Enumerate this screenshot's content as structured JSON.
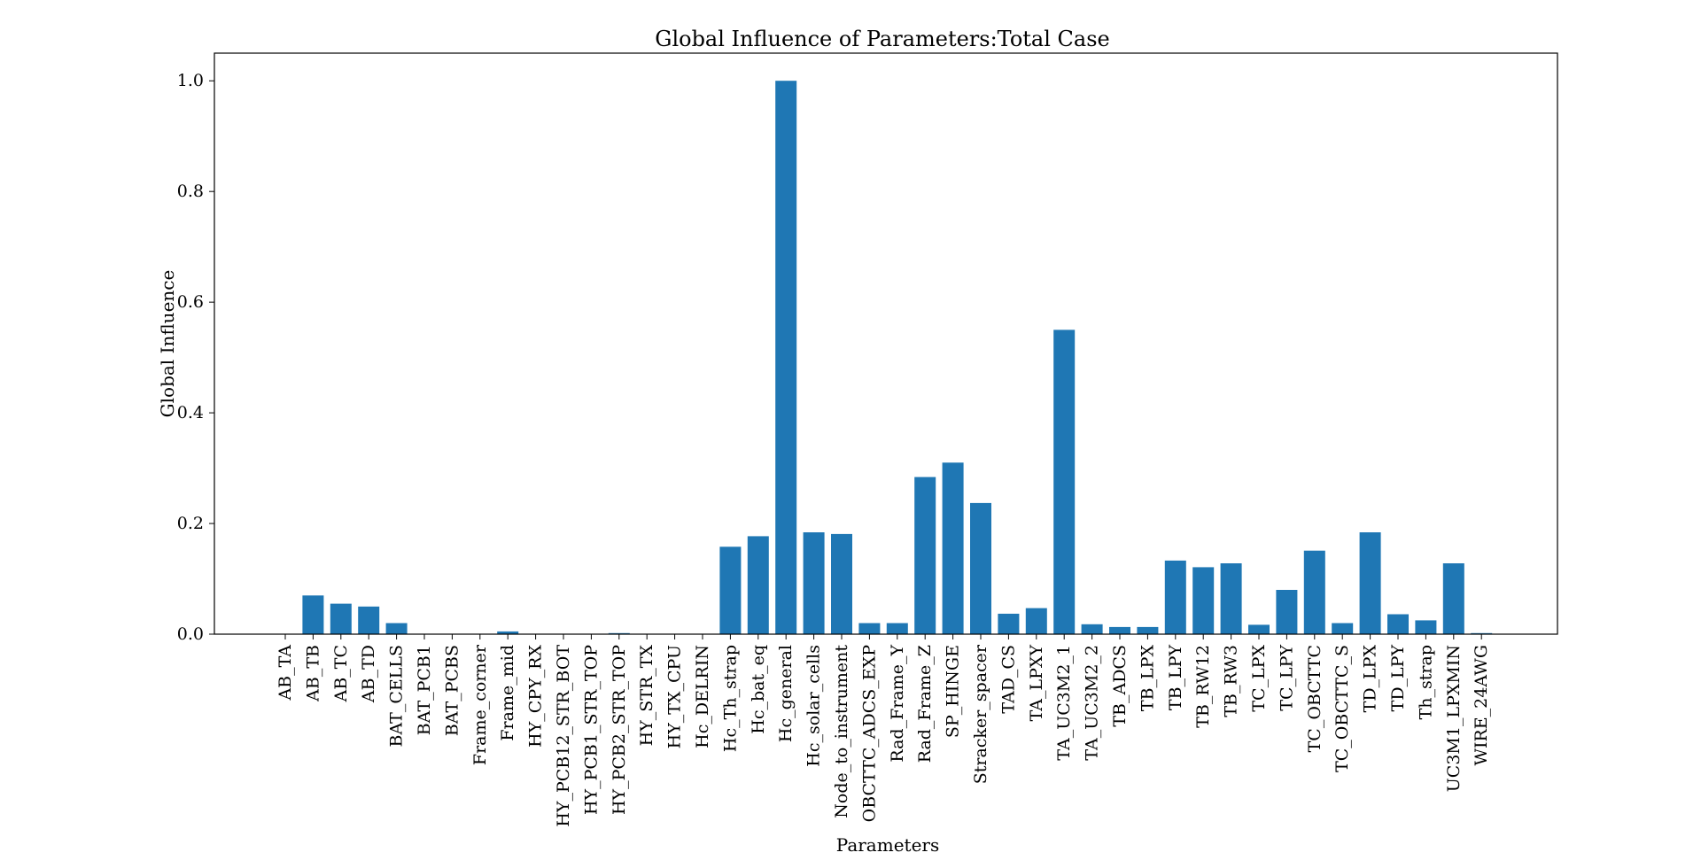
{
  "chart_data": {
    "type": "bar",
    "title": "Global Influence of Parameters:Total Case",
    "xlabel": "Parameters",
    "ylabel": "Global Influence",
    "ylim": [
      0,
      1.05
    ],
    "yticks": [
      "0.0",
      "0.2",
      "0.4",
      "0.6",
      "0.8",
      "1.0"
    ],
    "grid": false,
    "bar_color": "#1f77b4",
    "categories": [
      "AB_TA",
      "AB_TB",
      "AB_TC",
      "AB_TD",
      "BAT_CELLS",
      "BAT_PCB1",
      "BAT_PCBS",
      "Frame_corner",
      "Frame_mid",
      "HY_CPY_RX",
      "HY_PCB12_STR_BOT",
      "HY_PCB1_STR_TOP",
      "HY_PCB2_STR_TOP",
      "HY_STR_TX",
      "HY_TX_CPU",
      "Hc_DELRIN",
      "Hc_Th_strap",
      "Hc_bat_eq",
      "Hc_general",
      "Hc_solar_cells",
      "Node_to_instrument",
      "OBCTTC_ADCS_EXP",
      "Rad_Frame_Y",
      "Rad_Frame_Z",
      "SP_HINGE",
      "Stracker_spacer",
      "TAD_CS",
      "TA_LPXY",
      "TA_UC3M2_1",
      "TA_UC3M2_2",
      "TB_ADCS",
      "TB_LPX",
      "TB_LPY",
      "TB_RW12",
      "TB_RW3",
      "TC_LPX",
      "TC_LPY",
      "TC_OBCTTC",
      "TC_OBCTTC_S",
      "TD_LPX",
      "TD_LPY",
      "Th_strap",
      "UC3M1_LPXMIN",
      "WIRE_24AWG"
    ],
    "values": [
      0.0,
      0.07,
      0.055,
      0.05,
      0.02,
      0.0,
      0.0,
      0.0,
      0.005,
      0.0,
      0.0,
      0.0,
      0.002,
      0.0,
      0.0,
      0.0,
      0.158,
      0.177,
      1.0,
      0.184,
      0.181,
      0.02,
      0.02,
      0.284,
      0.31,
      0.237,
      0.037,
      0.047,
      0.55,
      0.018,
      0.013,
      0.013,
      0.133,
      0.121,
      0.128,
      0.017,
      0.08,
      0.151,
      0.02,
      0.184,
      0.036,
      0.025,
      0.128,
      0.002
    ]
  }
}
